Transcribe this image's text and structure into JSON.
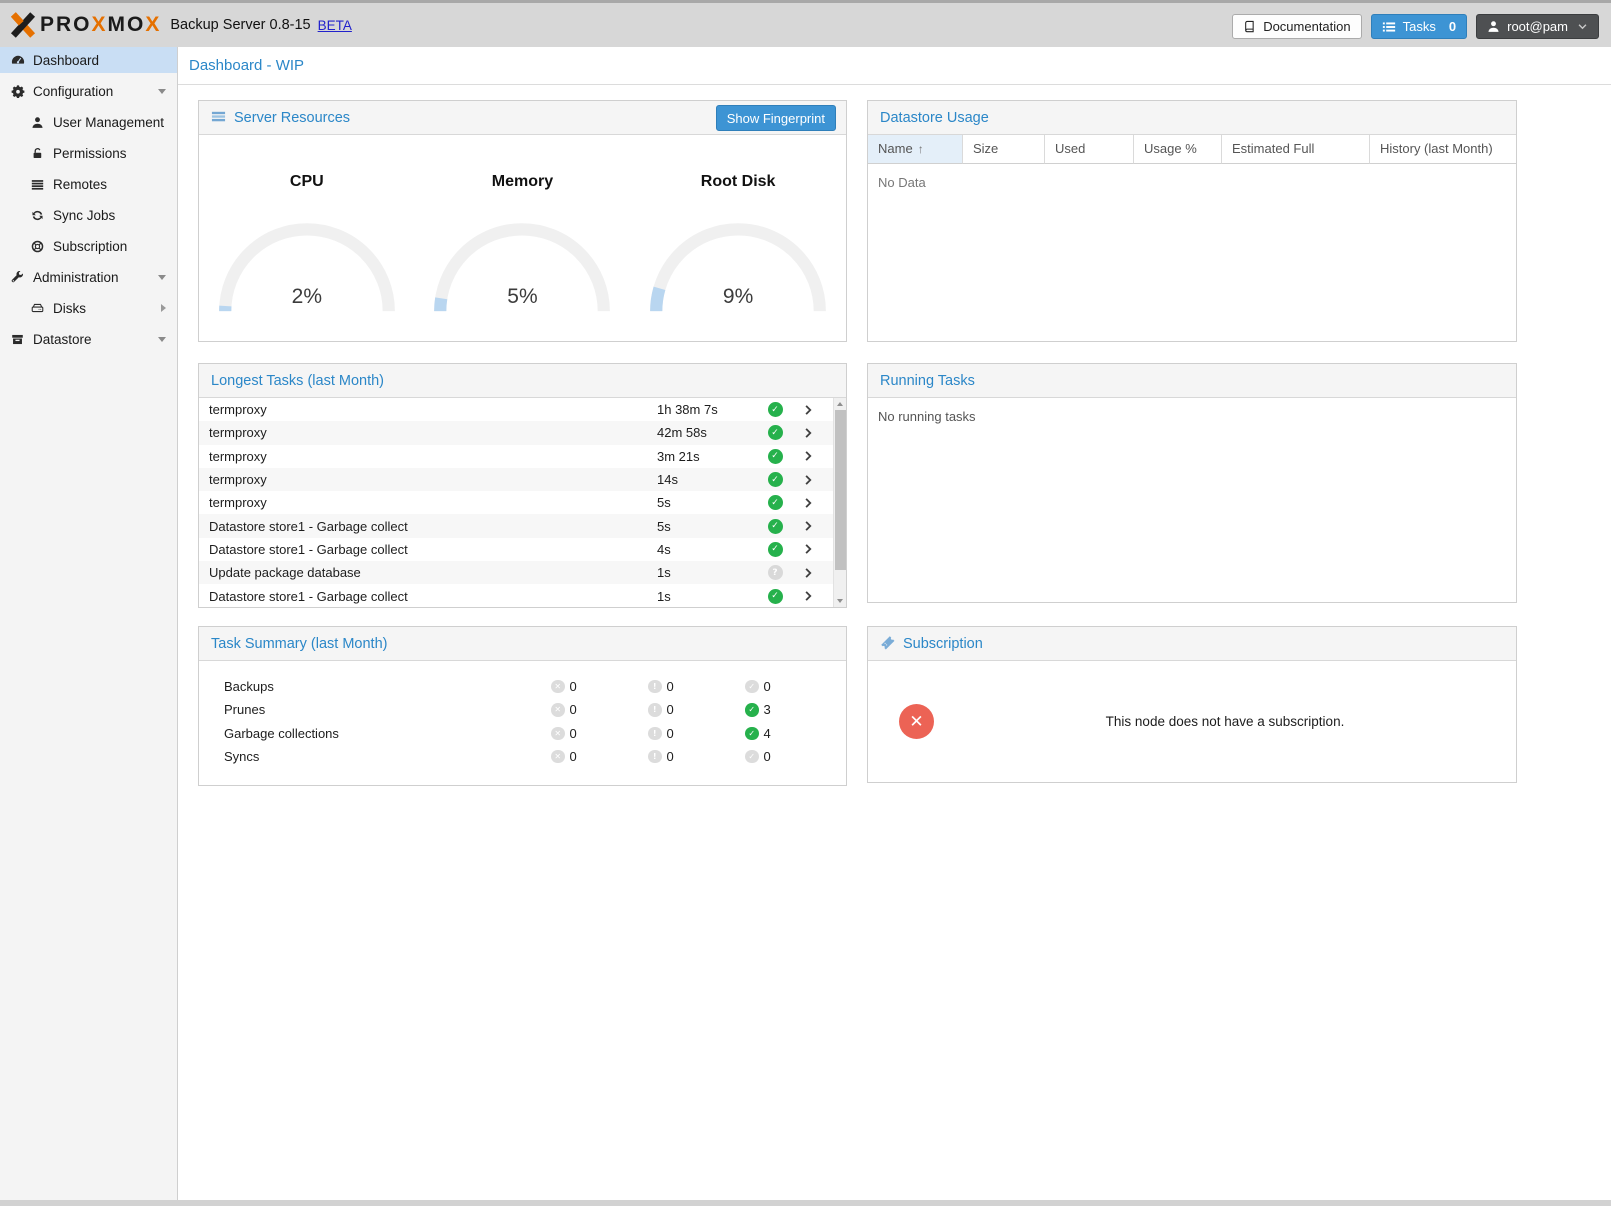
{
  "header": {
    "logo": {
      "icon": "proxmox-x-icon",
      "part1": "PRO",
      "x1": "X",
      "part2": "MO",
      "x2": "X"
    },
    "app_title": "Backup Server 0.8-15",
    "beta_link": "BETA",
    "documentation_button": "Documentation",
    "tasks_button": "Tasks",
    "tasks_count": "0",
    "user_menu": "root@pam"
  },
  "sidebar": {
    "items": [
      {
        "label": "Dashboard",
        "icon": "dashboard-icon",
        "style": "active",
        "caret": ""
      },
      {
        "label": "Configuration",
        "icon": "gears-icon",
        "style": "",
        "caret": "down"
      },
      {
        "label": "User Management",
        "icon": "user-icon",
        "style": "indent",
        "caret": ""
      },
      {
        "label": "Permissions",
        "icon": "unlock-icon",
        "style": "indent",
        "caret": ""
      },
      {
        "label": "Remotes",
        "icon": "remotes-icon",
        "style": "indent",
        "caret": ""
      },
      {
        "label": "Sync Jobs",
        "icon": "sync-icon",
        "style": "indent",
        "caret": ""
      },
      {
        "label": "Subscription",
        "icon": "support-icon",
        "style": "indent",
        "caret": ""
      },
      {
        "label": "Administration",
        "icon": "wrench-icon",
        "style": "",
        "caret": "down"
      },
      {
        "label": "Disks",
        "icon": "disks-icon",
        "style": "indent",
        "caret": "right"
      },
      {
        "label": "Datastore",
        "icon": "datastore-icon",
        "style": "",
        "caret": "down"
      }
    ]
  },
  "page": {
    "title": "Dashboard - WIP"
  },
  "server_resources": {
    "title": "Server Resources",
    "fingerprint_button": "Show Fingerprint",
    "gauges": [
      {
        "label": "CPU",
        "value": "2%",
        "percent": 2
      },
      {
        "label": "Memory",
        "value": "5%",
        "percent": 5
      },
      {
        "label": "Root Disk",
        "value": "9%",
        "percent": 9
      }
    ]
  },
  "datastore_usage": {
    "title": "Datastore Usage",
    "columns": [
      {
        "label": "Name",
        "sorted": "sorted"
      },
      {
        "label": "Size",
        "sorted": ""
      },
      {
        "label": "Used",
        "sorted": ""
      },
      {
        "label": "Usage %",
        "sorted": ""
      },
      {
        "label": "Estimated Full",
        "sorted": ""
      },
      {
        "label": "History (last Month)",
        "sorted": ""
      }
    ],
    "empty_text": "No Data"
  },
  "longest_tasks": {
    "title": "Longest Tasks (last Month)",
    "rows": [
      {
        "name": "termproxy",
        "duration": "1h 38m 7s",
        "status": "ok"
      },
      {
        "name": "termproxy",
        "duration": "42m 58s",
        "status": "ok"
      },
      {
        "name": "termproxy",
        "duration": "3m 21s",
        "status": "ok"
      },
      {
        "name": "termproxy",
        "duration": "14s",
        "status": "ok"
      },
      {
        "name": "termproxy",
        "duration": "5s",
        "status": "ok"
      },
      {
        "name": "Datastore store1 - Garbage collect",
        "duration": "5s",
        "status": "ok"
      },
      {
        "name": "Datastore store1 - Garbage collect",
        "duration": "4s",
        "status": "ok"
      },
      {
        "name": "Update package database",
        "duration": "1s",
        "status": "unknown"
      },
      {
        "name": "Datastore store1 - Garbage collect",
        "duration": "1s",
        "status": "ok"
      }
    ]
  },
  "running_tasks": {
    "title": "Running Tasks",
    "empty_text": "No running tasks"
  },
  "task_summary": {
    "title": "Task Summary (last Month)",
    "rows": [
      {
        "label": "Backups",
        "error_count": "0",
        "warning_count": "0",
        "ok_count": "0",
        "ok_state": "ok-gray"
      },
      {
        "label": "Prunes",
        "error_count": "0",
        "warning_count": "0",
        "ok_count": "3",
        "ok_state": "ok-green"
      },
      {
        "label": "Garbage collections",
        "error_count": "0",
        "warning_count": "0",
        "ok_count": "4",
        "ok_state": "ok-green"
      },
      {
        "label": "Syncs",
        "error_count": "0",
        "warning_count": "0",
        "ok_count": "0",
        "ok_state": "ok-gray"
      }
    ]
  },
  "subscription": {
    "title": "Subscription",
    "message": "This node does not have a subscription."
  },
  "colors": {
    "brand_orange": "#e57000",
    "accent_blue": "#3d94d4",
    "title_blue": "#2b87c8",
    "ok_green": "#26b14c",
    "error_red": "#ec6355",
    "gauge_fill": "#b9d6f0"
  }
}
